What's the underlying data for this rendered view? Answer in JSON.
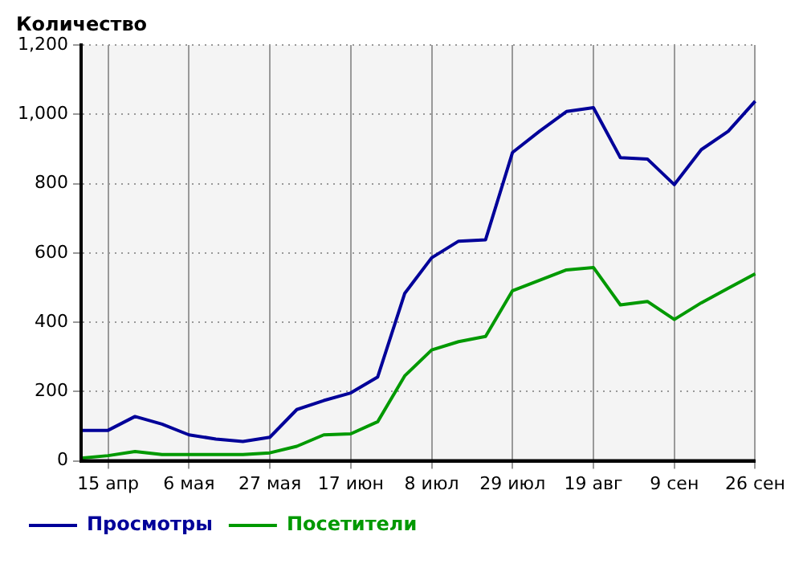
{
  "chart_data": {
    "type": "line",
    "ylabel": "Количество",
    "categories": [
      null,
      "15 апр",
      null,
      null,
      "6 мая",
      null,
      null,
      "27 мая",
      null,
      null,
      "17 июн",
      null,
      null,
      "8 июл",
      null,
      null,
      "29 июл",
      null,
      null,
      "19 авг",
      null,
      null,
      "9 сен",
      null,
      null,
      "26 сен"
    ],
    "series": [
      {
        "name": "Просмотры",
        "color": "#000099",
        "values": [
          88,
          88,
          128,
          106,
          75,
          63,
          56,
          68,
          148,
          174,
          196,
          242,
          483,
          586,
          634,
          638,
          890,
          951,
          1008,
          1019,
          875,
          871,
          797,
          898,
          951,
          1038
        ]
      },
      {
        "name": "Посетители",
        "color": "#009900",
        "values": [
          8,
          15,
          27,
          18,
          18,
          18,
          18,
          23,
          42,
          75,
          78,
          113,
          245,
          320,
          344,
          359,
          491,
          521,
          551,
          558,
          450,
          460,
          408,
          456,
          498,
          540
        ]
      }
    ],
    "ylim": [
      0,
      1200
    ],
    "yticks": [
      0,
      200,
      400,
      600,
      800,
      {
        "value": 1000,
        "label": "1,000"
      },
      {
        "value": 1200,
        "label": "1,200"
      }
    ],
    "grid": true,
    "legend": "bottom left",
    "marker": "none",
    "line_style": "solid"
  }
}
